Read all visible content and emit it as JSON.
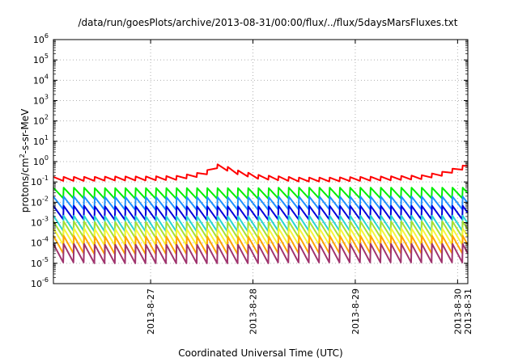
{
  "chart_data": {
    "type": "line",
    "title": "/data/run/goesPlots/archive/2013-08-31/00:00/flux/../flux/5daysMarsFluxes.txt",
    "xlabel": "Coordinated Universal Time (UTC)",
    "ylabel_parts": {
      "pre": "protons/cm",
      "sup": "2",
      "post": "-s-sr-MeV"
    },
    "y_scale": "log",
    "ylim": [
      1e-06,
      1000000.0
    ],
    "y_ticks": [
      {
        "base": "10",
        "exp": "-6"
      },
      {
        "base": "10",
        "exp": "-5"
      },
      {
        "base": "10",
        "exp": "-4"
      },
      {
        "base": "10",
        "exp": "-3"
      },
      {
        "base": "10",
        "exp": "-2"
      },
      {
        "base": "10",
        "exp": "-1"
      },
      {
        "base": "10",
        "exp": "0"
      },
      {
        "base": "10",
        "exp": "1"
      },
      {
        "base": "10",
        "exp": "2"
      },
      {
        "base": "10",
        "exp": "3"
      },
      {
        "base": "10",
        "exp": "4"
      },
      {
        "base": "10",
        "exp": "5"
      },
      {
        "base": "10",
        "exp": "6"
      }
    ],
    "xlim": [
      0,
      4.05
    ],
    "x_ticks": [
      {
        "label": "2013-8-27",
        "value": 0.95
      },
      {
        "label": "2013-8-28",
        "value": 1.95
      },
      {
        "label": "2013-8-29",
        "value": 2.95
      },
      {
        "label": "2013-8-30",
        "value": 3.95
      },
      {
        "label": "2013-8-31",
        "value": 4.95
      }
    ],
    "grid": true,
    "sawtooth_period_days": 0.1,
    "series": [
      {
        "color": "#ff0000",
        "points": [
          [
            0.0,
            0.14
          ],
          [
            0.3,
            0.14
          ],
          [
            0.6,
            0.15
          ],
          [
            0.9,
            0.15
          ],
          [
            1.2,
            0.16
          ],
          [
            1.4,
            0.22
          ],
          [
            1.5,
            0.3
          ],
          [
            1.6,
            0.6
          ],
          [
            1.7,
            0.45
          ],
          [
            1.8,
            0.3
          ],
          [
            2.0,
            0.18
          ],
          [
            2.2,
            0.15
          ],
          [
            2.4,
            0.13
          ],
          [
            2.7,
            0.13
          ],
          [
            3.0,
            0.14
          ],
          [
            3.3,
            0.15
          ],
          [
            3.6,
            0.17
          ],
          [
            3.8,
            0.25
          ],
          [
            4.05,
            0.6
          ]
        ],
        "amplitude": 1.6
      },
      {
        "color": "#00ee00",
        "points": [
          [
            0.0,
            0.028
          ],
          [
            4.05,
            0.028
          ]
        ],
        "amplitude": 3.5
      },
      {
        "color": "#1f90ff",
        "points": [
          [
            0.0,
            0.009
          ],
          [
            4.05,
            0.009
          ]
        ],
        "amplitude": 4.5
      },
      {
        "color": "#0000dd",
        "points": [
          [
            0.0,
            0.003
          ],
          [
            4.05,
            0.003
          ]
        ],
        "amplitude": 5.0
      },
      {
        "color": "#2ad4d4",
        "points": [
          [
            0.0,
            0.0009
          ],
          [
            4.05,
            0.0009
          ]
        ],
        "amplitude": 6.0
      },
      {
        "color": "#a8e035",
        "points": [
          [
            0.0,
            0.00045
          ],
          [
            4.05,
            0.00045
          ]
        ],
        "amplitude": 6.5
      },
      {
        "color": "#f5f53a",
        "points": [
          [
            0.0,
            0.0002
          ],
          [
            4.05,
            0.0002
          ]
        ],
        "amplitude": 7.0
      },
      {
        "color": "#ffa500",
        "points": [
          [
            0.0,
            8e-05
          ],
          [
            4.05,
            8e-05
          ]
        ],
        "amplitude": 8.0
      },
      {
        "color": "#a0346e",
        "points": [
          [
            0.0,
            3e-05
          ],
          [
            4.05,
            3e-05
          ]
        ],
        "amplitude": 9.0
      }
    ]
  }
}
